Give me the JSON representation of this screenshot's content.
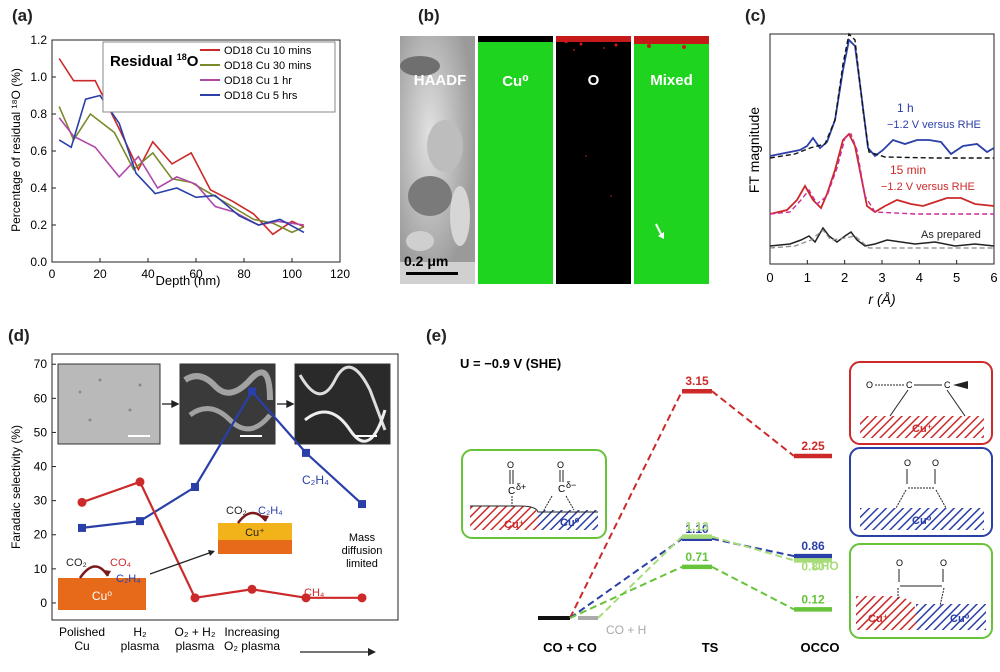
{
  "panels": {
    "a": {
      "label": "(a)",
      "legend_title_prefix": "Residual ",
      "legend_title_sup": "18",
      "legend_title_suffix": "O",
      "ylabel": "Percentage of residual ¹⁸O (%)",
      "xlabel": "Depth (nm)"
    },
    "b": {
      "label": "(b)",
      "tiles": [
        "HAADF",
        "Cu⁰",
        "O",
        "Mixed"
      ],
      "scalebar": "0.2 μm"
    },
    "c": {
      "label": "(c)",
      "ylabel": "FT magnitude",
      "xlabel": "r (Å)",
      "annotations": [
        "1 h",
        "−1.2 V versus RHE",
        "15 min",
        "−1.2 V versus RHE",
        "As prepared"
      ]
    },
    "d": {
      "label": "(d)",
      "ylabel": "Faradaic selectivity (%)",
      "categories": [
        "Polished\nCu",
        "H₂\nplasma",
        "O₂ + H₂\nplasma",
        "Increasing\nO₂ plasma"
      ],
      "annotations": {
        "c2h4_right": "C₂H₄",
        "mass": [
          "Mass",
          "diffusion",
          "limited"
        ],
        "ch4": "CH₄",
        "co2_left": "CO₂",
        "co4_left": "CO₄",
        "c2h4_left": "C₂H₄",
        "cu0": "Cu⁰",
        "co2_mid": "CO₂",
        "c2h4_mid": "C₂H₄",
        "cuplus": "Cu⁺"
      }
    },
    "e": {
      "label": "(e)",
      "potential": "U = −0.9 V (SHE)",
      "xlabels": [
        "CO + CO",
        "TS",
        "OCCO"
      ],
      "co_h": "CO + H",
      "cho": "CHO",
      "structure_labels": {
        "left_cuplus": "Cu⁺",
        "left_cu0": "Cu⁰",
        "left_c_plus": "C",
        "left_delta_plus": "δ+",
        "left_c_minus": "C",
        "left_delta_minus": "δ−",
        "top_cuplus": "Cu⁺",
        "mid_cu0": "Cu⁰",
        "bot_cuplus": "Cu⁺",
        "bot_cu0": "Cu⁰"
      }
    }
  },
  "colors": {
    "red": "#cc2a2a",
    "blue": "#2a3fa8",
    "green": "#66c33a",
    "lightgreen": "#a8dc7a",
    "gray": "#aaaaaa",
    "purple": "#b04aa8",
    "olive": "#7a8a2a"
  },
  "chart_data": [
    {
      "type": "line",
      "panel": "a",
      "title": "Residual ¹⁸O",
      "xlabel": "Depth (nm)",
      "ylabel": "Percentage of residual ¹⁸O (%)",
      "xlim": [
        0,
        120
      ],
      "ylim": [
        0.0,
        1.2
      ],
      "xticks": [
        0,
        20,
        40,
        60,
        80,
        100,
        120
      ],
      "yticks": [
        0.0,
        0.2,
        0.4,
        0.6,
        0.8,
        1.0,
        1.2
      ],
      "legend_position": "top-right",
      "series": [
        {
          "name": "OD18 Cu 10 mins",
          "color": "#cc2a2a",
          "x": [
            3,
            9,
            18,
            28,
            36,
            42,
            50,
            58,
            66,
            75,
            84,
            92,
            100,
            105
          ],
          "y": [
            1.1,
            0.98,
            0.98,
            0.72,
            0.5,
            0.65,
            0.53,
            0.59,
            0.39,
            0.33,
            0.26,
            0.15,
            0.22,
            0.19
          ]
        },
        {
          "name": "OD18 Cu 30 mins",
          "color": "#7a8a2a",
          "x": [
            3,
            9,
            16,
            26,
            34,
            42,
            50,
            58,
            66,
            75,
            84,
            92,
            100,
            105
          ],
          "y": [
            0.84,
            0.66,
            0.8,
            0.7,
            0.5,
            0.59,
            0.45,
            0.43,
            0.37,
            0.3,
            0.23,
            0.21,
            0.16,
            0.19
          ]
        },
        {
          "name": "OD18 Cu 1 hr",
          "color": "#b04aa8",
          "x": [
            3,
            9,
            18,
            28,
            36,
            44,
            52,
            60,
            68,
            76,
            86,
            94,
            105
          ],
          "y": [
            0.78,
            0.68,
            0.62,
            0.46,
            0.57,
            0.4,
            0.46,
            0.42,
            0.3,
            0.27,
            0.2,
            0.22,
            0.2
          ]
        },
        {
          "name": "OD18 Cu 5 hrs",
          "color": "#2a3fa8",
          "x": [
            3,
            8,
            14,
            20,
            28,
            35,
            43,
            52,
            60,
            68,
            78,
            86,
            95,
            105
          ],
          "y": [
            0.66,
            0.62,
            0.88,
            0.9,
            0.75,
            0.48,
            0.37,
            0.4,
            0.35,
            0.36,
            0.25,
            0.2,
            0.23,
            0.16
          ]
        }
      ]
    },
    {
      "type": "line",
      "panel": "c",
      "xlabel": "r (Å)",
      "ylabel": "FT magnitude",
      "xlim": [
        0,
        6
      ],
      "xticks": [
        0,
        1,
        2,
        3,
        4,
        5,
        6
      ],
      "series": [
        {
          "name": "1 h",
          "color": "#2a3fa8"
        },
        {
          "name": "15 min",
          "color": "#cc2a2a"
        },
        {
          "name": "As prepared",
          "color": "#222222"
        }
      ]
    },
    {
      "type": "line",
      "panel": "d",
      "ylabel": "Faradaic selectivity (%)",
      "ylim": [
        -5,
        73
      ],
      "yticks": [
        0,
        10,
        20,
        30,
        40,
        50,
        60,
        70
      ],
      "categories": [
        "Polished Cu",
        "H₂ plasma",
        "O₂ + H₂ plasma",
        "Increasing O₂ plasma"
      ],
      "series": [
        {
          "name": "C₂H₄",
          "color": "#2a3fa8",
          "x": [
            0,
            1,
            2,
            3,
            4,
            5
          ],
          "y": [
            22,
            24,
            34,
            62,
            44,
            29
          ]
        },
        {
          "name": "CH₄",
          "color": "#cc2a2a",
          "x": [
            0,
            1,
            2,
            3,
            4,
            5
          ],
          "y": [
            29.5,
            35.5,
            1.5,
            4,
            1.5,
            1.5
          ]
        }
      ]
    },
    {
      "type": "line",
      "panel": "e",
      "title": "U = −0.9 V (SHE)",
      "xlabels": [
        "CO + CO",
        "TS",
        "OCCO"
      ],
      "series": [
        {
          "name": "red",
          "color": "#cc2a2a",
          "ts": 3.15,
          "occo": 2.25
        },
        {
          "name": "blue",
          "color": "#2a3fa8",
          "ts": 1.1,
          "occo": 0.86
        },
        {
          "name": "lightgreen",
          "color": "#a8dc7a",
          "ts": 1.13,
          "occo": 0.8
        },
        {
          "name": "green",
          "color": "#66c33a",
          "ts": 0.71,
          "occo": 0.12
        }
      ]
    }
  ]
}
